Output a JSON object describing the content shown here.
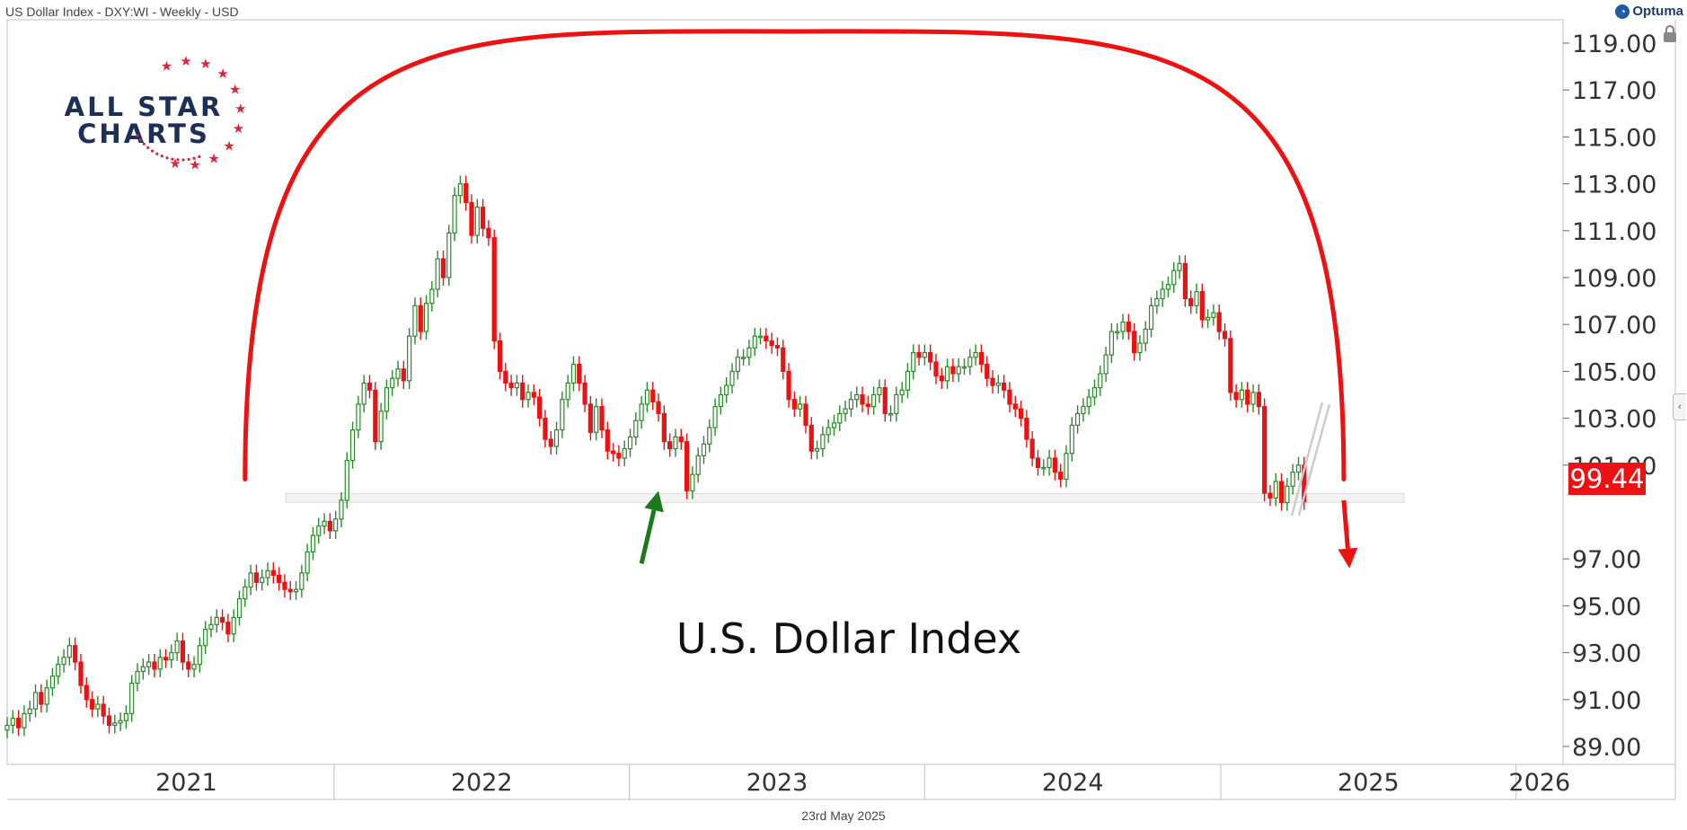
{
  "header": {
    "title": "US Dollar Index - DXY:WI - Weekly - USD"
  },
  "brand": {
    "name": "Optuma"
  },
  "logo": {
    "line1": "ALL STAR",
    "line2": "CHARTS"
  },
  "footer": {
    "date": "23rd May 2025"
  },
  "colors": {
    "up": "#2a8a2a",
    "down": "#ee1111",
    "arc": "#ee1111",
    "arrow_up": "#1a7a1a",
    "last_badge": "#ee1111",
    "support_band": "#dddddd",
    "logo_navy": "#1c2f57",
    "logo_red": "#d7263d"
  },
  "chart_data": {
    "type": "candlestick",
    "title": "U.S. Dollar Index",
    "xlabel": "",
    "ylabel": "",
    "ylim": [
      88.0,
      120.5
    ],
    "y_ticks": [
      "119.00",
      "117.00",
      "115.00",
      "113.00",
      "111.00",
      "109.00",
      "107.00",
      "105.00",
      "103.00",
      "101.00",
      "97.00",
      "95.00",
      "93.00",
      "91.00",
      "89.00"
    ],
    "x_ticks": [
      "2021",
      "2022",
      "2023",
      "2024",
      "2025",
      "2026"
    ],
    "last_price": "99.44",
    "support_level": 99.6,
    "annotations": [
      {
        "type": "arc",
        "from": [
          "2021-09-13",
          100.4
        ],
        "peak": [
          "2023-07-17",
          119.5
        ],
        "to": [
          "2025-06-02",
          100.4
        ]
      },
      {
        "type": "arrow",
        "direction": "down",
        "from": [
          "2025-06-02",
          99.5
        ],
        "to": [
          "2025-06-09",
          96.6
        ]
      },
      {
        "type": "arrow",
        "direction": "up",
        "from": [
          "2023-01-16",
          96.8
        ],
        "to": [
          "2023-02-06",
          99.9
        ]
      },
      {
        "type": "band",
        "label": "",
        "y": 99.6
      }
    ],
    "series": [
      {
        "weekly_close": [
          89.9,
          90.2,
          89.8,
          90.4,
          90.6,
          91.3,
          90.8,
          91.5,
          92.0,
          92.5,
          92.8,
          93.3,
          92.6,
          91.6,
          91.0,
          90.6,
          90.8,
          90.3,
          89.9,
          90.0,
          90.1,
          90.4,
          91.7,
          92.2,
          92.4,
          92.6,
          92.3,
          92.8,
          92.7,
          93.0,
          93.5,
          92.6,
          92.3,
          92.5,
          93.3,
          94.0,
          94.2,
          94.5,
          94.3,
          93.8,
          94.5,
          95.3,
          95.8,
          96.4,
          96.0,
          96.2,
          96.5,
          96.3,
          96.0,
          95.7,
          95.6,
          95.7,
          96.4,
          97.3,
          98.0,
          98.4,
          98.6,
          98.2,
          98.7,
          99.5,
          101.2,
          102.5,
          103.6,
          104.5,
          104.2,
          102.0,
          103.3,
          104.3,
          104.7,
          105.1,
          104.6,
          106.5,
          107.8,
          106.7,
          107.9,
          108.5,
          109.8,
          109.0,
          110.9,
          112.5,
          113.0,
          112.2,
          110.8,
          112.0,
          111.1,
          110.7,
          106.3,
          105.0,
          104.5,
          104.3,
          104.5,
          103.8,
          104.1,
          103.9,
          103.0,
          102.1,
          101.8,
          102.5,
          103.8,
          104.5,
          105.3,
          104.5,
          103.6,
          102.4,
          103.5,
          102.5,
          101.6,
          101.5,
          101.3,
          101.7,
          102.2,
          102.9,
          103.6,
          104.2,
          103.7,
          103.2,
          102.0,
          101.7,
          102.2,
          102.0,
          99.9,
          100.6,
          101.4,
          101.9,
          102.6,
          103.5,
          104.0,
          104.4,
          105.0,
          105.6,
          105.6,
          106.0,
          106.5,
          106.5,
          106.3,
          106.1,
          106.0,
          105.0,
          103.8,
          103.4,
          103.6,
          102.7,
          101.6,
          101.7,
          102.3,
          102.6,
          102.8,
          103.2,
          103.4,
          103.8,
          104.0,
          103.6,
          103.5,
          104.0,
          104.3,
          103.2,
          103.2,
          104.0,
          104.2,
          105.0,
          105.8,
          105.6,
          105.8,
          105.4,
          104.8,
          104.6,
          105.2,
          104.9,
          105.2,
          105.2,
          105.6,
          105.8,
          105.3,
          104.7,
          104.4,
          104.5,
          104.2,
          103.6,
          103.4,
          103.0,
          102.1,
          101.3,
          100.9,
          100.9,
          101.3,
          100.7,
          100.4,
          101.5,
          102.7,
          103.2,
          103.5,
          103.9,
          104.3,
          104.9,
          105.7,
          106.7,
          106.7,
          107.1,
          106.7,
          105.8,
          106.2,
          106.8,
          107.8,
          108.1,
          108.5,
          108.7,
          109.3,
          109.6,
          108.1,
          107.8,
          108.4,
          107.2,
          107.3,
          107.5,
          106.7,
          106.4,
          104.1,
          103.8,
          104.2,
          103.6,
          104.1,
          103.5,
          99.8,
          99.6,
          100.3,
          99.4,
          100.1,
          100.7,
          101.0,
          99.44
        ]
      }
    ]
  }
}
